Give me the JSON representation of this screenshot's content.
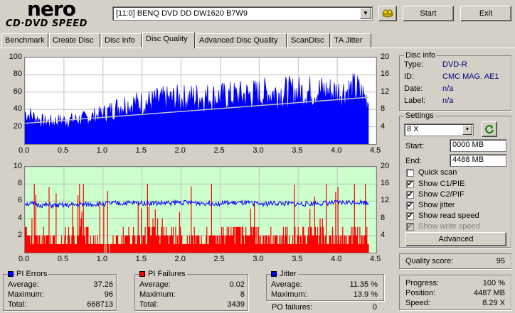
{
  "logo": {
    "brand": "nero",
    "product": "CD·DVD SPEED"
  },
  "drive": {
    "selected": "[11:0]  BENQ DVD DD DW1620 B7W9"
  },
  "buttons": {
    "start": "Start",
    "exit": "Exit",
    "advanced": "Advanced"
  },
  "tabs": [
    "Benchmark",
    "Create Disc",
    "Disc Info",
    "Disc Quality",
    "Advanced Disc Quality",
    "ScanDisc",
    "TA Jitter"
  ],
  "active_tab": "Disc Quality",
  "disc_info": {
    "title": "Disc info",
    "type_label": "Type:",
    "type_value": "DVD-R",
    "id_label": "ID:",
    "id_value": "CMC MAG. AE1",
    "date_label": "Date:",
    "date_value": "n/a",
    "label_label": "Label:",
    "label_value": "n/a"
  },
  "settings": {
    "title": "Settings",
    "speed": "8 X",
    "start_label": "Start:",
    "start_value": "0000 MB",
    "end_label": "End:",
    "end_value": "4488 MB",
    "quick_scan": "Quick scan",
    "show_c1": "Show C1/PIE",
    "show_c2": "Show C2/PIF",
    "show_jitter": "Show jitter",
    "show_read": "Show read speed",
    "show_write": "Show write speed"
  },
  "quality": {
    "label": "Quality score:",
    "value": "95"
  },
  "progress": {
    "progress_label": "Progress:",
    "progress_value": "100 %",
    "position_label": "Position:",
    "position_value": "4487 MB",
    "speed_label": "Speed:",
    "speed_value": "8.29 X"
  },
  "pi_errors": {
    "title": "PI Errors",
    "avg_label": "Average:",
    "avg": "37.26",
    "max_label": "Maximum:",
    "max": "96",
    "total_label": "Total:",
    "total": "668713",
    "color": "#0000ff"
  },
  "pi_failures": {
    "title": "PI Failures",
    "avg_label": "Average:",
    "avg": "0.02",
    "max_label": "Maximum:",
    "max": "8",
    "total_label": "Total:",
    "total": "3439",
    "color": "#ff0000"
  },
  "jitter": {
    "title": "Jitter",
    "avg_label": "Average:",
    "avg": "11.35 %",
    "max_label": "Maximum:",
    "max": "13.9 %",
    "color": "#0000ff"
  },
  "po_failures": {
    "label": "PO failures:",
    "value": "0"
  },
  "chart_data": [
    {
      "type": "area",
      "series": [
        {
          "name": "PI Errors",
          "color": "#0000ff",
          "x": [
            0.0,
            0.25,
            0.5,
            0.75,
            1.0,
            1.25,
            1.5,
            1.75,
            2.0,
            2.25,
            2.5,
            2.75,
            3.0,
            3.25,
            3.5,
            3.75,
            4.0,
            4.25,
            4.4
          ],
          "values": [
            40,
            28,
            30,
            32,
            38,
            50,
            52,
            56,
            58,
            60,
            60,
            62,
            64,
            66,
            66,
            68,
            66,
            70,
            55
          ]
        },
        {
          "name": "Read speed",
          "color": "#c0c0c0",
          "x": [
            0.0,
            4.4
          ],
          "values": [
            4.8,
            10.8
          ]
        }
      ],
      "xlim": [
        0,
        4.5
      ],
      "ylim": [
        0,
        100
      ],
      "y2lim": [
        0,
        20
      ],
      "xticks": [
        "0.0",
        "0.5",
        "1.0",
        "1.5",
        "2.0",
        "2.5",
        "3.0",
        "3.5",
        "4.0",
        "4.5"
      ],
      "yticks": [
        "20",
        "40",
        "60",
        "80",
        "100"
      ],
      "y2ticks": [
        "4",
        "8",
        "12",
        "16",
        "20"
      ],
      "background": "#ffffff"
    },
    {
      "type": "bar",
      "series": [
        {
          "name": "PI Failures",
          "color": "#ff0000",
          "x": [
            0.0,
            0.25,
            0.5,
            0.75,
            1.0,
            1.25,
            1.5,
            1.75,
            2.0,
            2.25,
            2.5,
            2.75,
            3.0,
            3.25,
            3.5,
            3.75,
            4.0,
            4.25,
            4.4
          ],
          "values": [
            3,
            2,
            2,
            3,
            1,
            2,
            2,
            3,
            2,
            2,
            2,
            3,
            2,
            2,
            2,
            3,
            2,
            3,
            2
          ]
        },
        {
          "name": "Jitter",
          "color": "#0000ff",
          "x": [
            0.0,
            0.25,
            0.5,
            0.75,
            1.0,
            1.25,
            1.5,
            1.75,
            2.0,
            2.25,
            2.5,
            2.75,
            3.0,
            3.25,
            3.5,
            3.75,
            4.0,
            4.25,
            4.4
          ],
          "values": [
            11.5,
            11,
            11,
            11.2,
            11.4,
            11.5,
            11.6,
            11.5,
            11.7,
            11.6,
            11.5,
            11.6,
            11.4,
            11.5,
            11.3,
            11.5,
            11.6,
            11.8,
            11.6
          ]
        }
      ],
      "xlim": [
        0,
        4.5
      ],
      "ylim": [
        0,
        10
      ],
      "y2lim": [
        0,
        20
      ],
      "xticks": [
        "0.0",
        "0.5",
        "1.0",
        "1.5",
        "2.0",
        "2.5",
        "3.0",
        "3.5",
        "4.0",
        "4.5"
      ],
      "yticks": [
        "2",
        "4",
        "6",
        "8",
        "10"
      ],
      "y2ticks": [
        "4",
        "8",
        "12",
        "16",
        "20"
      ],
      "background": "#ccffcc"
    }
  ]
}
